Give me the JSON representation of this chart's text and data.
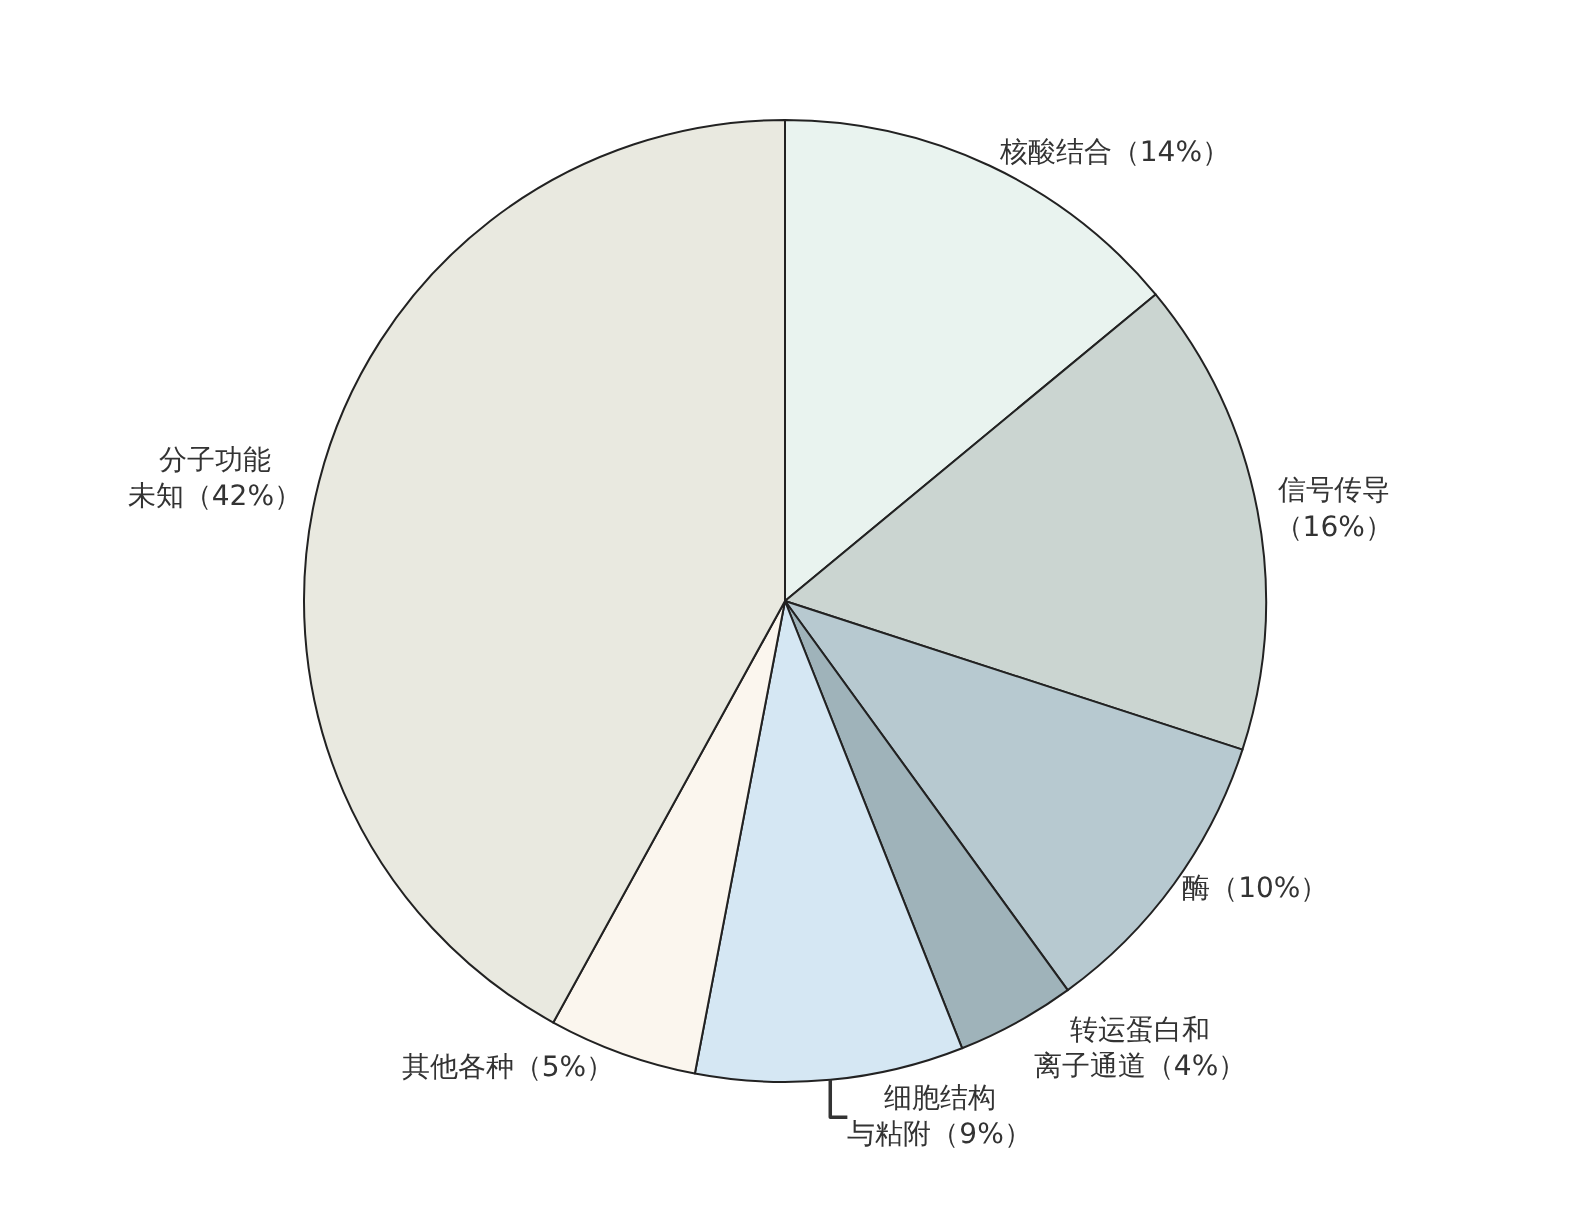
{
  "chart_data": {
    "type": "pie",
    "categories": [
      "核酸结合（14%）",
      "信号传导（16%）",
      "酶（10%）",
      "转运蛋白和离子通道（4%）",
      "细胞结构与粘附（9%）",
      "其他各种（5%）",
      "分子功能未知（42%）"
    ],
    "values": [
      14,
      16,
      10,
      4,
      9,
      5,
      42
    ],
    "colors": [
      "#e9f3ef",
      "#cbd5d1",
      "#b7c9d0",
      "#9fb3ba",
      "#d5e7f3",
      "#fbf6ee",
      "#e9e9e0"
    ],
    "legend": false
  }
}
